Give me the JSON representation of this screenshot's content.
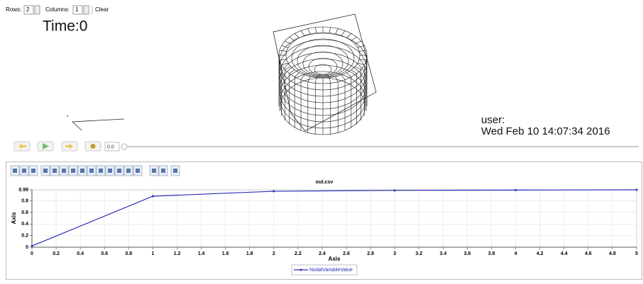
{
  "controls": {
    "rows_label": "Rows:",
    "rows_value": "2",
    "columns_label": "Columns:",
    "columns_value": "1",
    "clear": "Clear"
  },
  "viewer": {
    "time": "Time:0",
    "user": "user:",
    "date": "Wed Feb 10 14:07:34 2016"
  },
  "animation": {
    "frame": "0.0"
  },
  "chart_data": {
    "type": "line",
    "title": "out.csv",
    "x_label": "Axis",
    "y_label": "Axis",
    "x": [
      0,
      1,
      2,
      3,
      4,
      5
    ],
    "series": [
      {
        "name": "NodalVariableValue",
        "color": "#2b2bb8",
        "values": [
          0.02,
          0.88,
          0.965,
          0.98,
          0.985,
          0.99
        ]
      }
    ],
    "xlim": [
      0,
      5
    ],
    "ylim": [
      0,
      0.99
    ],
    "xticks": [
      0,
      0.2,
      0.4,
      0.6,
      0.8,
      1,
      1.2,
      1.4,
      1.6,
      1.8,
      2,
      2.2,
      2.4,
      2.6,
      2.8,
      3,
      3.2,
      3.4,
      3.6,
      3.8,
      4,
      4.2,
      4.4,
      4.6,
      4.8,
      5
    ],
    "yticks": [
      0,
      0.2,
      0.4,
      0.6,
      0.8,
      0.99
    ],
    "grid": true,
    "legend": "bottom"
  }
}
